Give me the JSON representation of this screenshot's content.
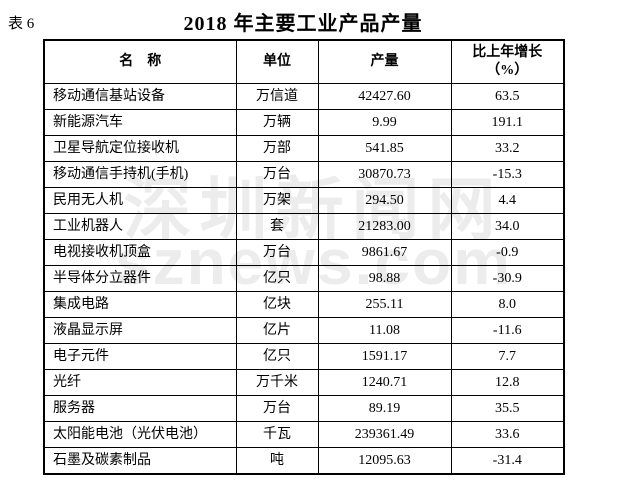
{
  "page": {
    "background_color": "#ffffff",
    "text_color": "#000000",
    "border_color": "#000000"
  },
  "table_label": "表 6",
  "title": "2018 年主要工业产品产量",
  "watermark": {
    "line1": "深圳新闻网",
    "line2": "sznews.com",
    "color": "#ececec"
  },
  "table": {
    "headers": {
      "name": "名　称",
      "unit": "单位",
      "output": "产量",
      "growth_line1": "比上年增长",
      "growth_line2": "（%）"
    },
    "rows": [
      {
        "name": "移动通信基站设备",
        "unit": "万信道",
        "output": "42427.60",
        "growth": "63.5"
      },
      {
        "name": "新能源汽车",
        "unit": "万辆",
        "output": "9.99",
        "growth": "191.1"
      },
      {
        "name": "卫星导航定位接收机",
        "unit": "万部",
        "output": "541.85",
        "growth": "33.2"
      },
      {
        "name": "移动通信手持机(手机)",
        "unit": "万台",
        "output": "30870.73",
        "growth": "-15.3"
      },
      {
        "name": "民用无人机",
        "unit": "万架",
        "output": "294.50",
        "growth": "4.4"
      },
      {
        "name": "工业机器人",
        "unit": "套",
        "output": "21283.00",
        "growth": "34.0"
      },
      {
        "name": "电视接收机顶盒",
        "unit": "万台",
        "output": "9861.67",
        "growth": "-0.9"
      },
      {
        "name": "半导体分立器件",
        "unit": "亿只",
        "output": "98.88",
        "growth": "-30.9"
      },
      {
        "name": "集成电路",
        "unit": "亿块",
        "output": "255.11",
        "growth": "8.0"
      },
      {
        "name": "液晶显示屏",
        "unit": "亿片",
        "output": "11.08",
        "growth": "-11.6"
      },
      {
        "name": "电子元件",
        "unit": "亿只",
        "output": "1591.17",
        "growth": "7.7"
      },
      {
        "name": "光纤",
        "unit": "万千米",
        "output": "1240.71",
        "growth": "12.8"
      },
      {
        "name": "服务器",
        "unit": "万台",
        "output": "89.19",
        "growth": "35.5"
      },
      {
        "name": "太阳能电池（光伏电池）",
        "unit": "千瓦",
        "output": "239361.49",
        "growth": "33.6"
      },
      {
        "name": "石墨及碳素制品",
        "unit": "吨",
        "output": "12095.63",
        "growth": "-31.4"
      }
    ]
  }
}
